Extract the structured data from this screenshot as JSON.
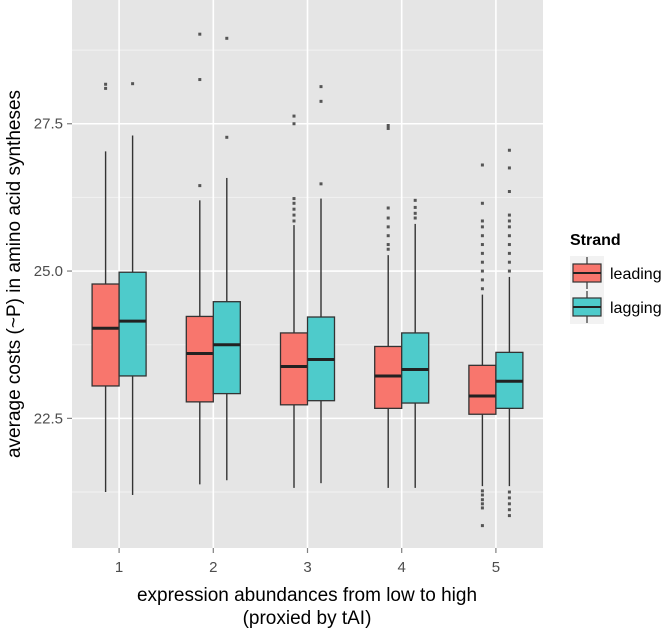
{
  "chart_data": {
    "type": "boxplot",
    "xlabel_line1": "expression abundances from low to high",
    "xlabel_line2": "(proxied by tAI)",
    "ylabel": "average costs (~P) in amino acid syntheses",
    "ylim": [
      20.3,
      29.6
    ],
    "yticks": [
      22.5,
      25.0,
      27.5
    ],
    "ytick_labels": [
      "22.5",
      "25.0",
      "27.5"
    ],
    "categories": [
      "1",
      "2",
      "3",
      "4",
      "5"
    ],
    "legend": {
      "title": "Strand",
      "entries": [
        {
          "name": "leading",
          "color": "#F8766D"
        },
        {
          "name": "lagging",
          "color": "#4ECBCB"
        }
      ]
    },
    "series": [
      {
        "name": "leading",
        "color": "#F8766D",
        "boxes": [
          {
            "category": "1",
            "whisker_low": 21.25,
            "q1": 23.05,
            "median": 24.03,
            "q3": 24.78,
            "whisker_high": 27.03,
            "outliers": [
              28.1,
              28.17
            ]
          },
          {
            "category": "2",
            "whisker_low": 21.38,
            "q1": 22.78,
            "median": 23.6,
            "q3": 24.23,
            "whisker_high": 26.2,
            "outliers": [
              26.45,
              28.25,
              29.02
            ]
          },
          {
            "category": "3",
            "whisker_low": 21.32,
            "q1": 22.73,
            "median": 23.38,
            "q3": 23.95,
            "whisker_high": 25.78,
            "outliers": [
              25.85,
              25.95,
              26.05,
              26.15,
              26.23,
              27.5,
              27.63
            ]
          },
          {
            "category": "4",
            "whisker_low": 21.32,
            "q1": 22.67,
            "median": 23.22,
            "q3": 23.72,
            "whisker_high": 25.27,
            "outliers": [
              25.37,
              25.45,
              25.6,
              25.75,
              25.9,
              26.07,
              27.42,
              27.47
            ]
          },
          {
            "category": "5",
            "whisker_low": 21.35,
            "q1": 22.57,
            "median": 22.88,
            "q3": 23.4,
            "whisker_high": 24.6,
            "outliers": [
              20.68,
              20.98,
              21.05,
              21.12,
              21.2,
              21.27,
              24.7,
              24.85,
              25.0,
              25.15,
              25.3,
              25.45,
              25.6,
              25.75,
              25.85,
              26.15,
              26.8
            ]
          }
        ]
      },
      {
        "name": "lagging",
        "color": "#4ECBCB",
        "boxes": [
          {
            "category": "1",
            "whisker_low": 21.2,
            "q1": 23.22,
            "median": 24.15,
            "q3": 24.98,
            "whisker_high": 27.3,
            "outliers": [
              28.18
            ]
          },
          {
            "category": "2",
            "whisker_low": 21.45,
            "q1": 22.92,
            "median": 23.75,
            "q3": 24.48,
            "whisker_high": 26.58,
            "outliers": [
              27.27,
              28.95
            ]
          },
          {
            "category": "3",
            "whisker_low": 21.4,
            "q1": 22.8,
            "median": 23.5,
            "q3": 24.22,
            "whisker_high": 26.23,
            "outliers": [
              26.48,
              27.88,
              28.13
            ]
          },
          {
            "category": "4",
            "whisker_low": 21.32,
            "q1": 22.76,
            "median": 23.33,
            "q3": 23.95,
            "whisker_high": 25.8,
            "outliers": [
              25.9,
              25.98,
              26.08,
              26.2
            ]
          },
          {
            "category": "5",
            "whisker_low": 21.35,
            "q1": 22.67,
            "median": 23.13,
            "q3": 23.62,
            "whisker_high": 24.9,
            "outliers": [
              20.85,
              20.95,
              21.05,
              21.15,
              21.25,
              25.0,
              25.15,
              25.3,
              25.45,
              25.6,
              25.75,
              25.85,
              25.95,
              26.35,
              26.75,
              27.05
            ]
          }
        ]
      }
    ]
  }
}
